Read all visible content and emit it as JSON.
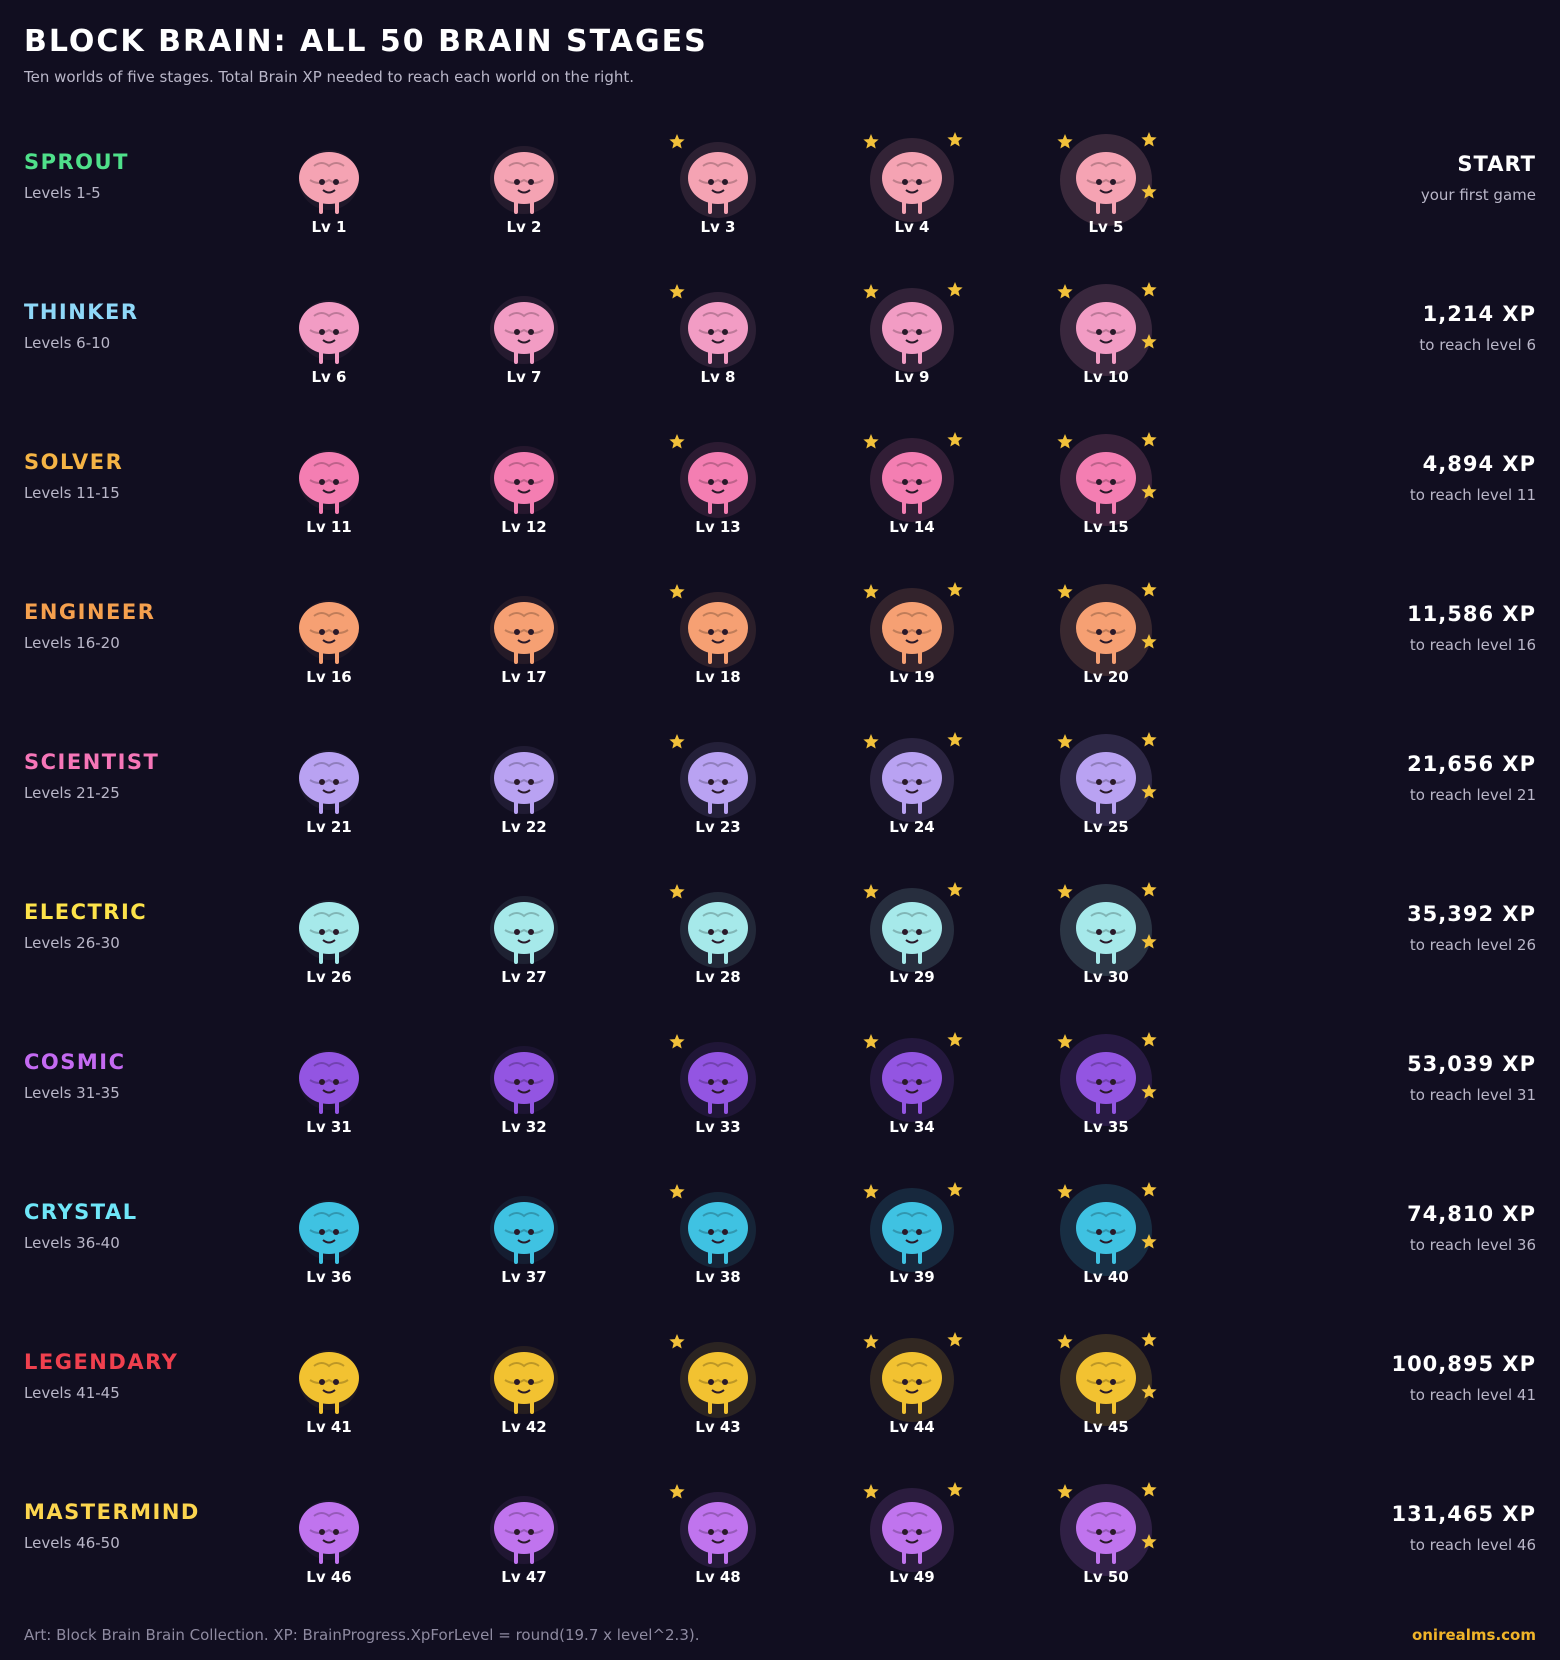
{
  "header": {
    "title": "BLOCK BRAIN: ALL 50 BRAIN STAGES",
    "subtitle": "Ten worlds of five stages. Total Brain XP needed to reach each world on the right."
  },
  "worlds": [
    {
      "name": "SPROUT",
      "levels": "Levels 1-5",
      "color": "#4fe08a",
      "brain_color": "#f5a3b3",
      "stages": [
        "Lv 1",
        "Lv 2",
        "Lv 3",
        "Lv 4",
        "Lv 5"
      ],
      "xp": "START",
      "xp_note": "your first game"
    },
    {
      "name": "THINKER",
      "levels": "Levels 6-10",
      "color": "#8fd8f8",
      "brain_color": "#f29cc4",
      "stages": [
        "Lv 6",
        "Lv 7",
        "Lv 8",
        "Lv 9",
        "Lv 10"
      ],
      "xp": "1,214 XP",
      "xp_note": "to reach level 6"
    },
    {
      "name": "SOLVER",
      "levels": "Levels 11-15",
      "color": "#f5b445",
      "brain_color": "#f47eb2",
      "stages": [
        "Lv 11",
        "Lv 12",
        "Lv 13",
        "Lv 14",
        "Lv 15"
      ],
      "xp": "4,894 XP",
      "xp_note": "to reach level 11"
    },
    {
      "name": "ENGINEER",
      "levels": "Levels 16-20",
      "color": "#f5a04e",
      "brain_color": "#f6a073",
      "stages": [
        "Lv 16",
        "Lv 17",
        "Lv 18",
        "Lv 19",
        "Lv 20"
      ],
      "xp": "11,586 XP",
      "xp_note": "to reach level 16"
    },
    {
      "name": "SCIENTIST",
      "levels": "Levels 21-25",
      "color": "#f676b8",
      "brain_color": "#b9a2f2",
      "stages": [
        "Lv 21",
        "Lv 22",
        "Lv 23",
        "Lv 24",
        "Lv 25"
      ],
      "xp": "21,656 XP",
      "xp_note": "to reach level 21"
    },
    {
      "name": "ELECTRIC",
      "levels": "Levels 26-30",
      "color": "#fde34a",
      "brain_color": "#a6e9ea",
      "stages": [
        "Lv 26",
        "Lv 27",
        "Lv 28",
        "Lv 29",
        "Lv 30"
      ],
      "xp": "35,392 XP",
      "xp_note": "to reach level 26"
    },
    {
      "name": "COSMIC",
      "levels": "Levels 31-35",
      "color": "#c46af2",
      "brain_color": "#9355e2",
      "stages": [
        "Lv 31",
        "Lv 32",
        "Lv 33",
        "Lv 34",
        "Lv 35"
      ],
      "xp": "53,039 XP",
      "xp_note": "to reach level 31"
    },
    {
      "name": "CRYSTAL",
      "levels": "Levels 36-40",
      "color": "#6fe6f8",
      "brain_color": "#3fc2e2",
      "stages": [
        "Lv 36",
        "Lv 37",
        "Lv 38",
        "Lv 39",
        "Lv 40"
      ],
      "xp": "74,810 XP",
      "xp_note": "to reach level 36"
    },
    {
      "name": "LEGENDARY",
      "levels": "Levels 41-45",
      "color": "#f0404e",
      "brain_color": "#f2c231",
      "stages": [
        "Lv 41",
        "Lv 42",
        "Lv 43",
        "Lv 44",
        "Lv 45"
      ],
      "xp": "100,895 XP",
      "xp_note": "to reach level 41"
    },
    {
      "name": "MASTERMIND",
      "levels": "Levels 46-50",
      "color": "#fcd54e",
      "brain_color": "#c074ee",
      "stages": [
        "Lv 46",
        "Lv 47",
        "Lv 48",
        "Lv 49",
        "Lv 50"
      ],
      "xp": "131,465 XP",
      "xp_note": "to reach level 46"
    }
  ],
  "footer": {
    "note": "Art: Block Brain Brain Collection. XP: BrainProgress.XpForLevel = round(19.7 x level^2.3).",
    "site": "onirealms.com"
  }
}
